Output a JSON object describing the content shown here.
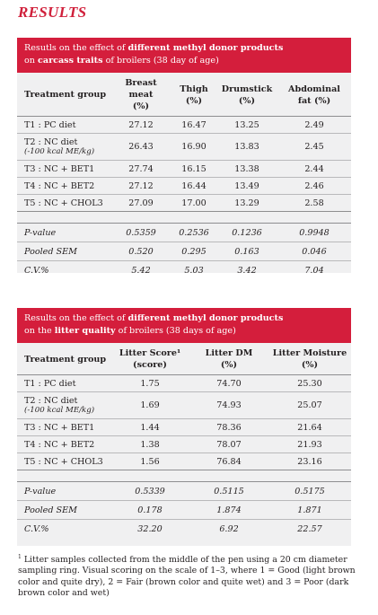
{
  "title": "RESULTS",
  "table1": {
    "header_pre": "Resutls on the effect of ",
    "header_bold": "different methyl donor products",
    "header_line2_pre": "on ",
    "header_line2_bold": "carcass traits",
    "header_line2_post": " of broilers (38 day of age)",
    "columns": [
      {
        "line1": "Treatment group",
        "line2": ""
      },
      {
        "line1": "Breast meat",
        "line2": "(%)"
      },
      {
        "line1": "Thigh",
        "line2": "(%)"
      },
      {
        "line1": "Drumstick",
        "line2": "(%)"
      },
      {
        "line1": "Abdominal",
        "line2": "fat (%)"
      }
    ],
    "rows": [
      {
        "label": "T1 : PC diet",
        "sub": "",
        "values": [
          "27.12",
          "16.47",
          "13.25",
          "2.49"
        ]
      },
      {
        "label": "T2 : NC diet",
        "sub": "(-100 kcal ME/kg)",
        "values": [
          "26.43",
          "16.90",
          "13.83",
          "2.45"
        ]
      },
      {
        "label": "T3 : NC + BET1",
        "sub": "",
        "values": [
          "27.74",
          "16.15",
          "13.38",
          "2.44"
        ]
      },
      {
        "label": "T4 : NC + BET2",
        "sub": "",
        "values": [
          "27.12",
          "16.44",
          "13.49",
          "2.46"
        ]
      },
      {
        "label": "T5 : NC + CHOL3",
        "sub": "",
        "values": [
          "27.09",
          "17.00",
          "13.29",
          "2.58"
        ]
      }
    ],
    "stats": [
      {
        "label": "P-value",
        "values": [
          "0.5359",
          "0.2536",
          "0.1236",
          "0.9948"
        ]
      },
      {
        "label": "Pooled SEM",
        "values": [
          "0.520",
          "0.295",
          "0.163",
          "0.046"
        ]
      },
      {
        "label": "C.V.%",
        "values": [
          "5.42",
          "5.03",
          "3.42",
          "7.04"
        ]
      }
    ]
  },
  "table2": {
    "header_pre": "Results on the effect of ",
    "header_bold": "different methyl donor products",
    "header_line2_pre": "on the ",
    "header_line2_bold": "litter quality",
    "header_line2_post": " of broilers (38 days of age)",
    "columns": [
      {
        "line1": "Treatment group",
        "line2": ""
      },
      {
        "line1": "Litter Score¹",
        "line2": "(score)"
      },
      {
        "line1": "Litter DM",
        "line2": "(%)"
      },
      {
        "line1": "Litter Moisture",
        "line2": "(%)"
      }
    ],
    "rows": [
      {
        "label": "T1 : PC diet",
        "sub": "",
        "values": [
          "1.75",
          "74.70",
          "25.30"
        ]
      },
      {
        "label": "T2 : NC diet",
        "sub": "(-100 kcal ME/kg)",
        "values": [
          "1.69",
          "74.93",
          "25.07"
        ]
      },
      {
        "label": "T3 : NC + BET1",
        "sub": "",
        "values": [
          "1.44",
          "78.36",
          "21.64"
        ]
      },
      {
        "label": "T4 : NC + BET2",
        "sub": "",
        "values": [
          "1.38",
          "78.07",
          "21.93"
        ]
      },
      {
        "label": "T5 : NC + CHOL3",
        "sub": "",
        "values": [
          "1.56",
          "76.84",
          "23.16"
        ]
      }
    ],
    "stats": [
      {
        "label": "P-value",
        "values": [
          "0.5339",
          "0.5115",
          "0.5175"
        ]
      },
      {
        "label": "Pooled SEM",
        "values": [
          "0.178",
          "1.874",
          "1.871"
        ]
      },
      {
        "label": "C.V.%",
        "values": [
          "32.20",
          "6.92",
          "22.57"
        ]
      }
    ]
  },
  "footnote": {
    "mark": "1",
    "text": "Litter samples collected from the middle of the pen using a 20 cm diameter sampling ring. Visual scoring on the scale of 1–3, where 1 = Good (light brown color and quite dry), 2 = Fair (brown color and quite wet) and 3 = Poor (dark brown color and wet)"
  }
}
